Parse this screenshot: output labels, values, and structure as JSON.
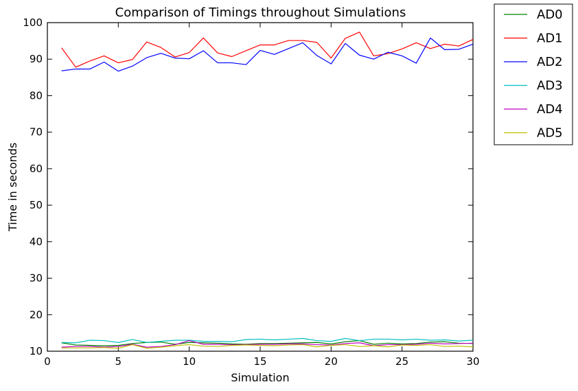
{
  "chart_data": {
    "type": "line",
    "title": "Comparison of Timings throughout Simulations",
    "xlabel": "Simulation",
    "ylabel": "Time in seconds",
    "xlim": [
      0,
      30
    ],
    "ylim": [
      10,
      100
    ],
    "xticks": [
      0,
      5,
      10,
      15,
      20,
      25,
      30
    ],
    "yticks": [
      10,
      20,
      30,
      40,
      50,
      60,
      70,
      80,
      90,
      100
    ],
    "grid": false,
    "legend_position": "outside-right-top",
    "x": [
      1,
      2,
      3,
      4,
      5,
      6,
      7,
      8,
      9,
      10,
      11,
      12,
      13,
      14,
      15,
      16,
      17,
      18,
      19,
      20,
      21,
      22,
      23,
      24,
      25,
      26,
      27,
      28,
      29,
      30
    ],
    "series": [
      {
        "name": "AD0",
        "color": "#008000",
        "values": [
          12.3,
          11.7,
          11.6,
          11.5,
          11.6,
          12.1,
          12.4,
          12.5,
          11.9,
          12.4,
          12.3,
          12.2,
          12.0,
          11.9,
          12.1,
          12.1,
          12.2,
          12.3,
          12.4,
          12.0,
          12.6,
          12.9,
          11.9,
          12.2,
          12.0,
          12.1,
          12.5,
          12.6,
          12.2,
          12.1
        ]
      },
      {
        "name": "AD1",
        "color": "#ff0000",
        "values": [
          93.1,
          87.8,
          89.5,
          90.9,
          89.0,
          89.9,
          94.7,
          93.2,
          90.6,
          91.8,
          95.8,
          91.7,
          90.7,
          92.3,
          93.9,
          93.9,
          95.1,
          95.1,
          94.6,
          90.3,
          95.7,
          97.4,
          90.9,
          91.5,
          92.8,
          94.5,
          92.9,
          94.1,
          93.6,
          95.4
        ]
      },
      {
        "name": "AD2",
        "color": "#0000ff",
        "values": [
          86.8,
          87.3,
          87.3,
          89.2,
          86.7,
          88.1,
          90.4,
          91.6,
          90.3,
          90.1,
          92.3,
          89.0,
          89.0,
          88.5,
          92.4,
          91.3,
          92.9,
          94.5,
          91.0,
          88.7,
          94.3,
          91.1,
          90.0,
          91.9,
          90.9,
          88.9,
          95.8,
          92.6,
          92.7,
          94.1
        ]
      },
      {
        "name": "AD3",
        "color": "#00bfbf",
        "values": [
          12.4,
          12.3,
          13.0,
          12.9,
          12.4,
          13.2,
          12.4,
          12.7,
          13.0,
          13.0,
          12.7,
          12.7,
          12.6,
          13.2,
          13.3,
          13.1,
          13.3,
          13.5,
          12.9,
          12.7,
          13.5,
          12.9,
          13.3,
          13.3,
          13.1,
          13.3,
          13.0,
          13.1,
          12.8,
          13.0
        ]
      },
      {
        "name": "AD4",
        "color": "#bf00bf",
        "values": [
          11.1,
          11.3,
          11.3,
          11.1,
          11.3,
          11.9,
          11.1,
          11.3,
          11.8,
          12.9,
          11.9,
          11.9,
          11.8,
          11.8,
          11.9,
          11.9,
          12.0,
          12.0,
          11.8,
          11.7,
          12.1,
          12.3,
          11.5,
          11.8,
          11.8,
          11.9,
          12.2,
          12.0,
          12.1,
          12.2
        ]
      },
      {
        "name": "AD5",
        "color": "#bfbf00",
        "values": [
          10.9,
          10.9,
          10.9,
          11.0,
          10.8,
          11.8,
          10.8,
          11.1,
          11.5,
          11.8,
          11.4,
          11.3,
          11.6,
          11.7,
          11.6,
          11.5,
          11.7,
          11.8,
          11.2,
          11.6,
          11.8,
          11.3,
          11.5,
          11.2,
          11.7,
          11.6,
          11.8,
          11.3,
          11.4,
          11.2
        ]
      }
    ]
  }
}
